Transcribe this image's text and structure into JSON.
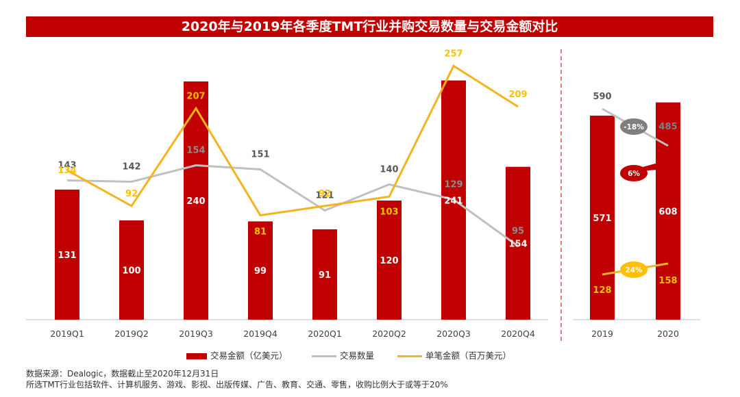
{
  "title": "2020年与2019年各季度TMT行业并购交易数量与交易金额对比",
  "chart_data": [
    {
      "type": "bar+line",
      "categories": [
        "2019Q1",
        "2019Q2",
        "2019Q3",
        "2019Q4",
        "2020Q1",
        "2020Q2",
        "2020Q3",
        "2020Q4"
      ],
      "bar_labels": [
        "131",
        "100",
        "240",
        "99",
        "91",
        "120",
        "241",
        "154"
      ],
      "series": [
        {
          "name": "交易金额（亿美元）",
          "kind": "bar",
          "color": "#c00000",
          "values": [
            131,
            100,
            240,
            99,
            91,
            120,
            241,
            154
          ]
        },
        {
          "name": "交易数量",
          "kind": "line",
          "color": "#c0c0c0",
          "values": [
            143,
            142,
            154,
            151,
            121,
            140,
            129,
            95
          ],
          "labels": [
            "143",
            "142",
            "154",
            "151",
            "121",
            "140",
            "129",
            "95"
          ]
        },
        {
          "name": "单笔金额（百万美元）",
          "kind": "line",
          "color": "#f5b31e",
          "values": [
            134,
            92,
            207,
            81,
            92,
            103,
            257,
            209
          ],
          "labels": [
            "134",
            "92",
            "207",
            "81",
            "92",
            "103",
            "257",
            "209"
          ]
        }
      ]
    },
    {
      "type": "bar+line",
      "categories": [
        "2019",
        "2020"
      ],
      "bar_labels": [
        "571",
        "608"
      ],
      "series": [
        {
          "name": "交易金额（亿美元）",
          "kind": "bar",
          "color": "#c00000",
          "values": [
            571,
            608
          ]
        },
        {
          "name": "交易数量",
          "kind": "line",
          "color": "#c0c0c0",
          "values": [
            590,
            485
          ],
          "labels": [
            "590",
            "485"
          ]
        },
        {
          "name": "单笔金额（百万美元）",
          "kind": "line",
          "color": "#f5b31e",
          "values": [
            128,
            158
          ],
          "labels": [
            "128",
            "158"
          ]
        }
      ],
      "annotations": [
        {
          "text": "-18%",
          "series": "交易数量",
          "color": "#7f7f7f"
        },
        {
          "text": "6%",
          "series": "交易金额（亿美元）",
          "color": "#c00000"
        },
        {
          "text": "24%",
          "series": "单笔金额（百万美元）",
          "color": "#ffc000"
        }
      ]
    }
  ],
  "legend": {
    "bar": "交易金额（亿美元）",
    "count": "交易数量",
    "avg": "单笔金额（百万美元）"
  },
  "source": {
    "line1": "数据来源：Dealogic，数据截止至2020年12月31日",
    "line2": "所选TMT行业包括软件、计算机服务、游戏、影视、出版传媒、广告、教育、交通、零售，收购比例大于或等于20%"
  }
}
